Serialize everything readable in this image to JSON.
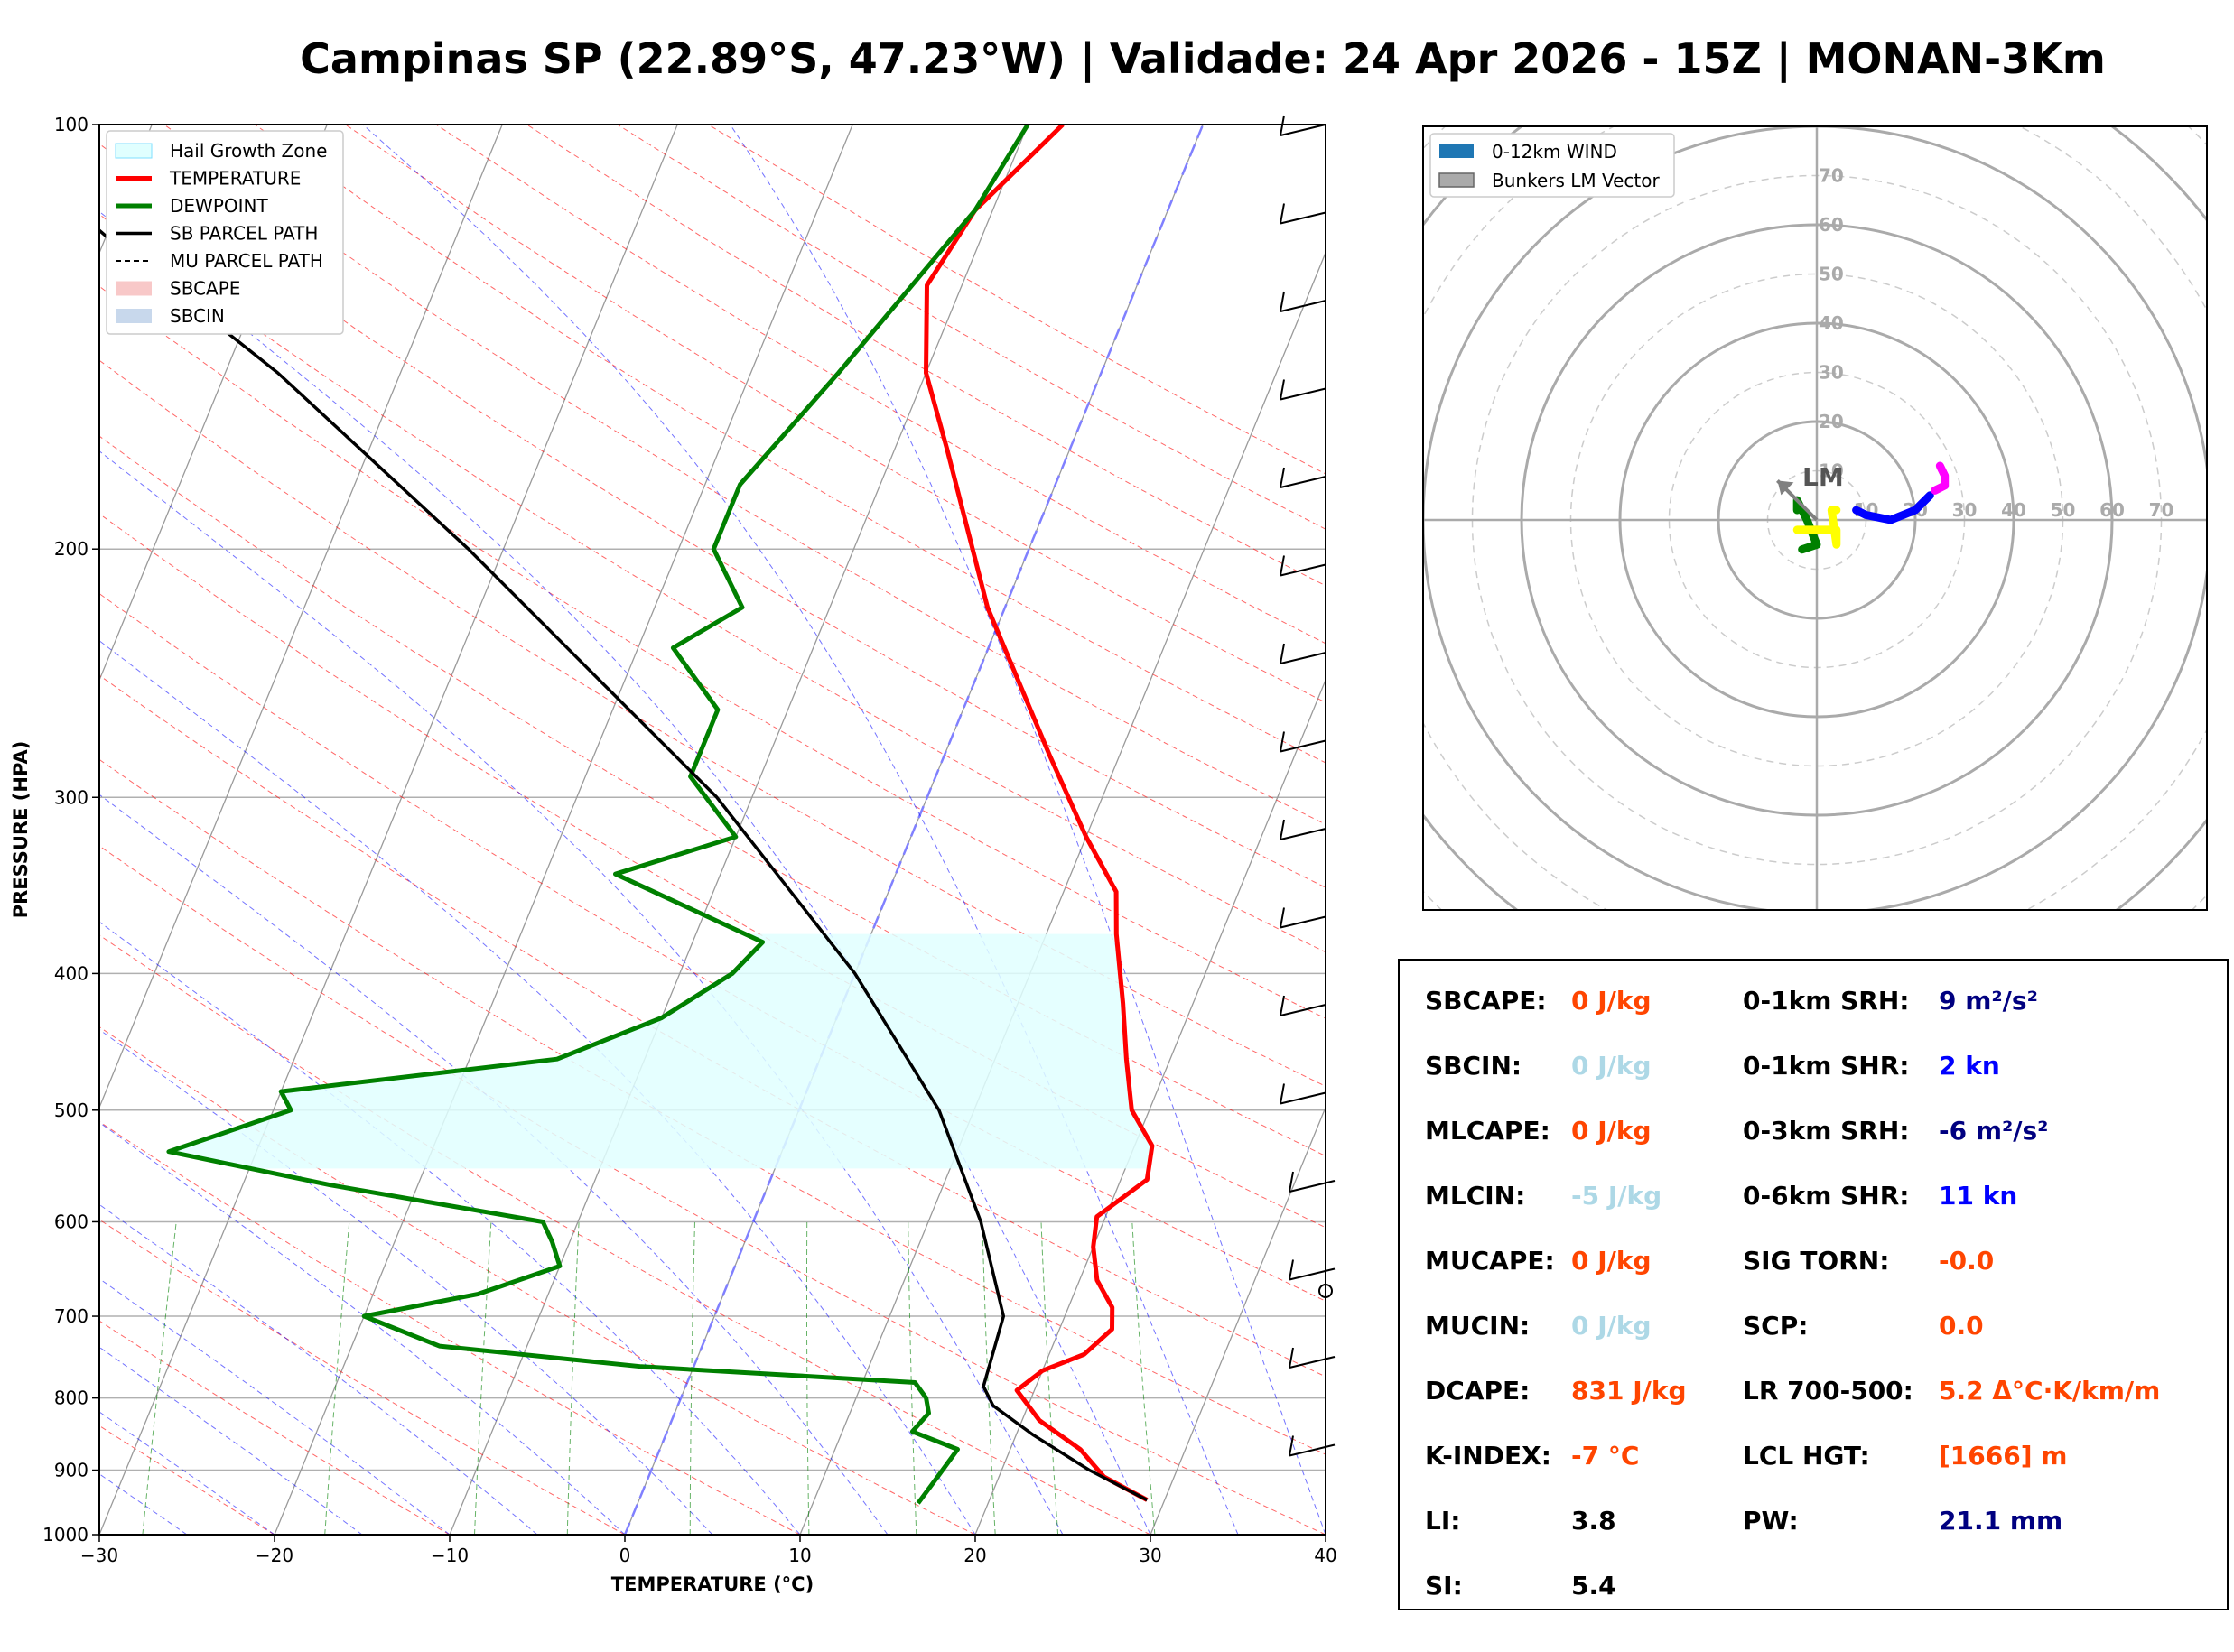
{
  "title": "Campinas SP (22.89°S, 47.23°W) | Validade: 24 Apr 2026 - 15Z | MONAN-3Km",
  "colors": {
    "temperature": "#ff0000",
    "dewpoint": "#008000",
    "parcel": "#000000",
    "hail_zone": "#e0ffff",
    "isotherm": "#808080",
    "dry_adiabat": "#ff0000",
    "moist_adiabat": "#0000ff",
    "mixing_ratio": "#008000",
    "hodo_0_3km": "#008000",
    "hodo_3_6km": "#ffff00",
    "hodo_6_9km": "#0000ff",
    "hodo_9_12km": "#ff00ff",
    "stat_red": "#ff4500",
    "stat_lightblue": "#add8e6",
    "stat_navy": "#000080",
    "stat_blue": "#0000ff"
  },
  "chart_data": [
    {
      "type": "line",
      "subtype": "skew-t log-p",
      "xlabel": "TEMPERATURE (°C)",
      "ylabel": "PRESSURE (HPA)",
      "xlim": [
        -30,
        40
      ],
      "ylim": [
        1000,
        100
      ],
      "yscale": "log",
      "x_ticks": [
        "−30",
        "−20",
        "−10",
        "0",
        "10",
        "20",
        "30",
        "40"
      ],
      "y_ticks": [
        "100",
        "200",
        "300",
        "400",
        "500",
        "600",
        "700",
        "800",
        "900",
        "1000"
      ],
      "grid": true,
      "legend_position": "top-left",
      "legend": [
        "Hail Growth Zone",
        "TEMPERATURE",
        "DEWPOINT",
        "SB PARCEL PATH",
        "MU PARCEL PATH",
        "SBCAPE",
        "SBCIN"
      ],
      "series": [
        {
          "name": "TEMPERATURE",
          "points": [
            [
              945,
              29
            ],
            [
              910,
              26
            ],
            [
              870,
              24
            ],
            [
              830,
              21
            ],
            [
              790,
              19
            ],
            [
              765,
              20
            ],
            [
              745,
              22
            ],
            [
              715,
              23
            ],
            [
              690,
              22.5
            ],
            [
              660,
              21
            ],
            [
              625,
              20
            ],
            [
              595,
              19.5
            ],
            [
              560,
              21.5
            ],
            [
              530,
              21
            ],
            [
              500,
              19
            ],
            [
              460,
              17.5
            ],
            [
              420,
              16
            ],
            [
              375,
              14
            ],
            [
              350,
              13
            ],
            [
              320,
              10
            ],
            [
              280,
              6
            ],
            [
              220,
              -1
            ],
            [
              170,
              -7
            ],
            [
              150,
              -10
            ],
            [
              130,
              -12
            ],
            [
              115,
              -11
            ],
            [
              100,
              -8
            ]
          ]
        },
        {
          "name": "DEWPOINT",
          "points": [
            [
              950,
              16
            ],
            [
              910,
              16.5
            ],
            [
              870,
              17
            ],
            [
              845,
              14
            ],
            [
              820,
              14.5
            ],
            [
              800,
              14
            ],
            [
              780,
              13
            ],
            [
              760,
              -3
            ],
            [
              735,
              -15
            ],
            [
              700,
              -20
            ],
            [
              675,
              -14
            ],
            [
              645,
              -10
            ],
            [
              620,
              -11
            ],
            [
              600,
              -12
            ],
            [
              565,
              -25
            ],
            [
              535,
              -35
            ],
            [
              500,
              -29
            ],
            [
              485,
              -30
            ],
            [
              460,
              -15
            ],
            [
              430,
              -10
            ],
            [
              400,
              -7
            ],
            [
              380,
              -6
            ],
            [
              340,
              -16
            ],
            [
              320,
              -10
            ],
            [
              290,
              -14
            ],
            [
              260,
              -14
            ],
            [
              235,
              -18
            ],
            [
              220,
              -15
            ],
            [
              200,
              -18
            ],
            [
              180,
              -18
            ],
            [
              150,
              -15
            ],
            [
              115,
              -11
            ],
            [
              100,
              -10
            ]
          ]
        },
        {
          "name": "SB PARCEL PATH",
          "points": [
            [
              945,
              29
            ],
            [
              900,
              25
            ],
            [
              850,
              21
            ],
            [
              810,
              18
            ],
            [
              785,
              17
            ],
            [
              700,
              16.5
            ],
            [
              600,
              13
            ],
            [
              500,
              8
            ],
            [
              400,
              0
            ],
            [
              300,
              -12
            ],
            [
              250,
              -21
            ],
            [
              200,
              -32
            ],
            [
              150,
              -47
            ],
            [
              120,
              -60
            ],
            [
              100,
              -70
            ]
          ]
        }
      ],
      "hail_growth_zone": {
        "p_top": 375,
        "p_bottom": 550
      }
    },
    {
      "type": "line",
      "subtype": "hodograph",
      "legend": [
        "0-12km WIND",
        "Bunkers LM Vector"
      ],
      "ring_labels": [
        "10",
        "20",
        "30",
        "40",
        "50",
        "60",
        "70"
      ],
      "lm_label": "LM",
      "lm_vector": [
        -8,
        8
      ],
      "series": [
        {
          "name": "0-3km",
          "points": [
            [
              -3,
              -6
            ],
            [
              0,
              -5
            ],
            [
              -2,
              0
            ],
            [
              -4,
              4
            ],
            [
              -4,
              2
            ]
          ]
        },
        {
          "name": "3-6km",
          "points": [
            [
              -4,
              -2
            ],
            [
              4,
              -2
            ],
            [
              4,
              -5
            ],
            [
              3,
              2
            ],
            [
              4,
              2
            ]
          ]
        },
        {
          "name": "6-9km",
          "points": [
            [
              8,
              2
            ],
            [
              10,
              1
            ],
            [
              15,
              0
            ],
            [
              20,
              2
            ],
            [
              23,
              5
            ]
          ]
        },
        {
          "name": "9-12km",
          "points": [
            [
              24,
              6
            ],
            [
              26,
              7
            ],
            [
              26,
              9
            ],
            [
              25,
              11
            ]
          ]
        }
      ]
    }
  ],
  "stats": [
    {
      "label": "SBCAPE:",
      "value": "0 J/kg",
      "color": "#ff4500"
    },
    {
      "label": "SBCIN:",
      "value": "0 J/kg",
      "color": "#add8e6"
    },
    {
      "label": "MLCAPE:",
      "value": "0 J/kg",
      "color": "#ff4500"
    },
    {
      "label": "MLCIN:",
      "value": "-5 J/kg",
      "color": "#add8e6"
    },
    {
      "label": "MUCAPE:",
      "value": "0 J/kg",
      "color": "#ff4500"
    },
    {
      "label": "MUCIN:",
      "value": "0 J/kg",
      "color": "#add8e6"
    },
    {
      "label": "DCAPE:",
      "value": "831 J/kg",
      "color": "#ff4500"
    },
    {
      "label": "K-INDEX:",
      "value": "-7 °C",
      "color": "#ff4500"
    },
    {
      "label": "LI:",
      "value": "3.8",
      "color": "#000000"
    },
    {
      "label": "SI:",
      "value": "5.4",
      "color": "#000000"
    },
    {
      "label": "0-1km SRH:",
      "value": "9 m²/s²",
      "color": "#000080"
    },
    {
      "label": "0-1km SHR:",
      "value": "2 kn",
      "color": "#0000ff"
    },
    {
      "label": "0-3km SRH:",
      "value": "-6 m²/s²",
      "color": "#000080"
    },
    {
      "label": "0-6km SHR:",
      "value": "11 kn",
      "color": "#0000ff"
    },
    {
      "label": "SIG TORN:",
      "value": "-0.0",
      "color": "#ff4500"
    },
    {
      "label": "SCP:",
      "value": "0.0",
      "color": "#ff4500"
    },
    {
      "label": "LR 700-500:",
      "value": "5.2 Δ°C·K/km/m",
      "color": "#ff4500"
    },
    {
      "label": "LCL HGT:",
      "value": "[1666] m",
      "color": "#ff4500"
    },
    {
      "label": "PW:",
      "value": "21.1 mm",
      "color": "#000080"
    }
  ]
}
